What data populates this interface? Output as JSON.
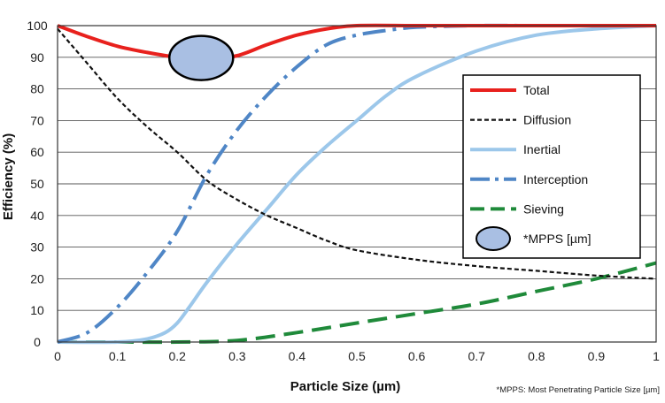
{
  "chart_data": {
    "type": "line",
    "xlabel": "Particle Size (µm)",
    "ylabel": "Efficiency (%)",
    "xlim": [
      0,
      1
    ],
    "ylim": [
      0,
      100
    ],
    "x_ticks": [
      "0",
      "0.1",
      "0.2",
      "0.3",
      "0.4",
      "0.5",
      "0.6",
      "0.7",
      "0.8",
      "0.9",
      "1"
    ],
    "y_ticks": [
      "0",
      "10",
      "20",
      "30",
      "40",
      "50",
      "60",
      "70",
      "80",
      "90",
      "100"
    ],
    "grid": "horizontal",
    "legend_position": "right",
    "footnote": "*MPPS: Most Penetrating Particle Size [µm]",
    "series": [
      {
        "name": "Total",
        "color": "#e8211d",
        "style": "solid",
        "x": [
          0,
          0.05,
          0.1,
          0.15,
          0.2,
          0.25,
          0.3,
          0.35,
          0.4,
          0.45,
          0.5,
          0.6,
          0.7,
          0.8,
          0.9,
          1
        ],
        "y": [
          100,
          96.5,
          93.5,
          91.5,
          90,
          89.5,
          90.5,
          94,
          97,
          99,
          100,
          100,
          100,
          100,
          100,
          100
        ]
      },
      {
        "name": "Diffusion",
        "color": "#111111",
        "style": "dashed",
        "x": [
          0,
          0.05,
          0.1,
          0.15,
          0.2,
          0.25,
          0.3,
          0.35,
          0.4,
          0.45,
          0.5,
          0.6,
          0.7,
          0.8,
          0.9,
          1
        ],
        "y": [
          99,
          88,
          77,
          68,
          60,
          51,
          45,
          40,
          36,
          32,
          29,
          26,
          24,
          22.5,
          21,
          20
        ]
      },
      {
        "name": "Inertial",
        "color": "#9cc7ea",
        "style": "solid",
        "x": [
          0,
          0.1,
          0.15,
          0.18,
          0.2,
          0.22,
          0.25,
          0.3,
          0.35,
          0.4,
          0.45,
          0.5,
          0.55,
          0.6,
          0.7,
          0.8,
          0.9,
          1
        ],
        "y": [
          0,
          0,
          1,
          3,
          6,
          11,
          19,
          31,
          42,
          53,
          62,
          70,
          78,
          84,
          92,
          97,
          99,
          100
        ]
      },
      {
        "name": "Interception",
        "color": "#4f86c6",
        "style": "dashdot",
        "x": [
          0,
          0.05,
          0.1,
          0.15,
          0.2,
          0.25,
          0.3,
          0.35,
          0.4,
          0.45,
          0.5,
          0.55,
          0.6,
          0.7,
          0.8,
          0.9,
          1
        ],
        "y": [
          0,
          3,
          11,
          22,
          35,
          53,
          67,
          78,
          87,
          94,
          97,
          98.5,
          99.5,
          100,
          100,
          100,
          100
        ]
      },
      {
        "name": "Sieving",
        "color": "#1f8a3a",
        "style": "longdash",
        "x": [
          0,
          0.1,
          0.2,
          0.3,
          0.4,
          0.5,
          0.6,
          0.7,
          0.8,
          0.9,
          1
        ],
        "y": [
          0,
          0,
          0,
          0.5,
          3,
          6,
          9,
          12,
          16,
          20,
          25
        ]
      }
    ],
    "mpps": {
      "name": "*MPPS [µm]",
      "x": 0.24,
      "y": 89.5,
      "fill": "#a9bfe3",
      "stroke": "#000000"
    }
  }
}
